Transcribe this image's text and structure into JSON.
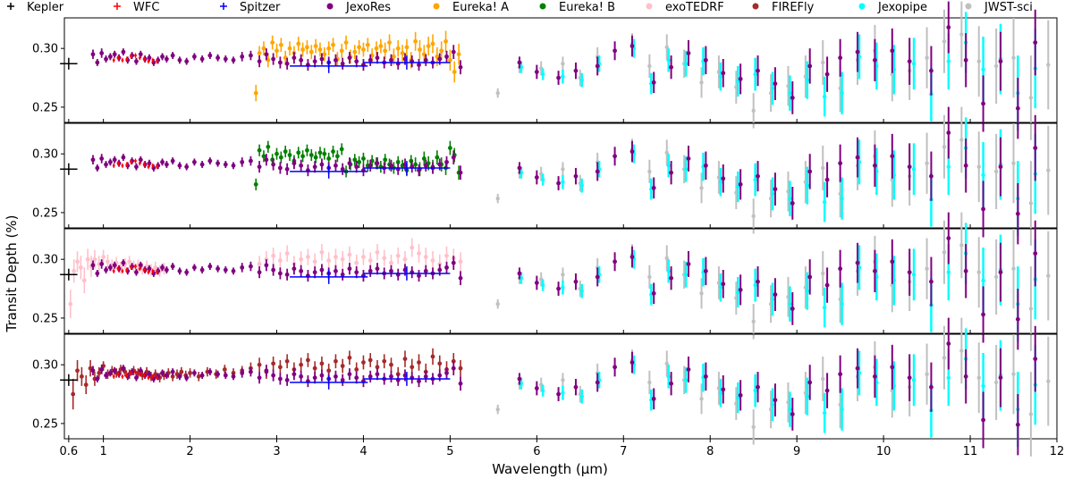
{
  "chart_data": {
    "type": "scatter",
    "xlabel": "Wavelength (μm)",
    "ylabel": "Transit Depth (%)",
    "xlim": [
      0.55,
      12.0
    ],
    "ylim": [
      0.237,
      0.326
    ],
    "x_ticks": [
      {
        "value": 0.6,
        "label": "0.6"
      },
      {
        "value": 1,
        "label": "1"
      },
      {
        "value": 2,
        "label": "2"
      },
      {
        "value": 3,
        "label": "3"
      },
      {
        "value": 4,
        "label": "4"
      },
      {
        "value": 5,
        "label": "5"
      },
      {
        "value": 6,
        "label": "6"
      },
      {
        "value": 7,
        "label": "7"
      },
      {
        "value": 8,
        "label": "8"
      },
      {
        "value": 9,
        "label": "9"
      },
      {
        "value": 10,
        "label": "10"
      },
      {
        "value": 11,
        "label": "11"
      },
      {
        "value": 12,
        "label": "12"
      }
    ],
    "y_ticks": [
      {
        "value": 0.25,
        "label": "0.25"
      },
      {
        "value": 0.3,
        "label": "0.30"
      }
    ],
    "legend_placement": "top, single row above panels",
    "grid": false,
    "panels": 4,
    "legend": [
      {
        "name": "Kepler",
        "color": "#000000",
        "marker": "plus"
      },
      {
        "name": "WFC",
        "color": "#ff0000",
        "marker": "plus"
      },
      {
        "name": "Spitzer",
        "color": "#0000ff",
        "marker": "plus"
      },
      {
        "name": "JexoRes",
        "color": "#800080",
        "marker": "dot"
      },
      {
        "name": "Eureka! A",
        "color": "#ffa500",
        "marker": "dot"
      },
      {
        "name": "Eureka! B",
        "color": "#008000",
        "marker": "dot"
      },
      {
        "name": "exoTEDRF",
        "color": "#ffc0cb",
        "marker": "dot"
      },
      {
        "name": "FIREFly",
        "color": "#a52a2a",
        "marker": "dot"
      },
      {
        "name": "Jexopipe",
        "color": "#00ffff",
        "marker": "dot"
      },
      {
        "name": "JWST-sci",
        "color": "#c0c0c0",
        "marker": "dot"
      }
    ],
    "panel_comparison_series": [
      "Eureka! A",
      "Eureka! B",
      "exoTEDRF",
      "FIREFly"
    ],
    "kepler": {
      "x": 0.6,
      "xerr": 0.1,
      "y": 0.287,
      "yerr": 0.005
    },
    "spitzer": [
      {
        "x": 3.6,
        "xerr": 0.45,
        "y": 0.285,
        "yerr": 0.006
      },
      {
        "x": 4.5,
        "xerr": 0.5,
        "y": 0.288,
        "yerr": 0.006
      }
    ],
    "wfc": {
      "x": [
        1.12,
        1.17,
        1.22,
        1.27,
        1.32,
        1.37,
        1.42,
        1.47,
        1.52,
        1.57,
        1.62
      ],
      "y": [
        0.29,
        0.292,
        0.29,
        0.291,
        0.293,
        0.294,
        0.292,
        0.291,
        0.289,
        0.29,
        0.289
      ],
      "err": [
        0.002,
        0.002,
        0.002,
        0.002,
        0.002,
        0.002,
        0.002,
        0.002,
        0.002,
        0.002,
        0.002
      ]
    },
    "jexores_near": {
      "x": [
        0.88,
        0.93,
        0.98,
        1.03,
        1.08,
        1.13,
        1.18,
        1.23,
        1.28,
        1.33,
        1.38,
        1.43,
        1.48,
        1.53,
        1.58,
        1.63,
        1.68,
        1.73,
        1.8,
        1.88,
        1.96,
        2.05,
        2.14,
        2.23,
        2.32,
        2.41,
        2.5,
        2.6,
        2.7,
        2.8,
        2.88,
        2.96,
        3.04,
        3.12,
        3.2,
        3.28,
        3.36,
        3.44,
        3.52,
        3.6,
        3.68,
        3.76,
        3.84,
        3.92,
        4.0,
        4.08,
        4.16,
        4.24,
        4.32,
        4.4,
        4.48,
        4.56,
        4.64,
        4.72,
        4.8,
        4.88,
        4.96,
        5.04,
        5.12
      ],
      "y": [
        0.295,
        0.288,
        0.296,
        0.291,
        0.293,
        0.295,
        0.292,
        0.297,
        0.29,
        0.294,
        0.289,
        0.295,
        0.291,
        0.292,
        0.288,
        0.29,
        0.293,
        0.291,
        0.294,
        0.29,
        0.289,
        0.293,
        0.291,
        0.294,
        0.292,
        0.291,
        0.29,
        0.293,
        0.294,
        0.289,
        0.295,
        0.291,
        0.288,
        0.287,
        0.292,
        0.29,
        0.286,
        0.289,
        0.291,
        0.288,
        0.29,
        0.287,
        0.292,
        0.289,
        0.286,
        0.29,
        0.292,
        0.288,
        0.29,
        0.287,
        0.291,
        0.289,
        0.286,
        0.29,
        0.288,
        0.291,
        0.293,
        0.297,
        0.284
      ],
      "err": [
        0.004,
        0.003,
        0.004,
        0.003,
        0.003,
        0.003,
        0.003,
        0.003,
        0.003,
        0.003,
        0.003,
        0.003,
        0.003,
        0.003,
        0.003,
        0.003,
        0.003,
        0.003,
        0.003,
        0.003,
        0.003,
        0.003,
        0.003,
        0.003,
        0.003,
        0.003,
        0.003,
        0.004,
        0.004,
        0.005,
        0.005,
        0.005,
        0.005,
        0.005,
        0.005,
        0.005,
        0.005,
        0.005,
        0.005,
        0.005,
        0.005,
        0.005,
        0.005,
        0.005,
        0.005,
        0.005,
        0.005,
        0.005,
        0.005,
        0.005,
        0.005,
        0.005,
        0.005,
        0.005,
        0.005,
        0.005,
        0.005,
        0.006,
        0.006
      ]
    },
    "jexores_far": {
      "x": [
        5.8,
        6.0,
        6.25,
        6.45,
        6.7,
        6.9,
        7.1,
        7.35,
        7.55,
        7.75,
        7.95,
        8.15,
        8.35,
        8.55,
        8.75,
        8.95,
        9.15,
        9.35,
        9.5,
        9.7,
        9.9,
        10.1,
        10.3,
        10.55,
        10.75,
        10.95,
        11.15,
        11.35,
        11.55,
        11.75
      ],
      "y": [
        0.288,
        0.28,
        0.275,
        0.281,
        0.285,
        0.298,
        0.302,
        0.271,
        0.284,
        0.296,
        0.29,
        0.279,
        0.274,
        0.281,
        0.27,
        0.258,
        0.285,
        0.278,
        0.292,
        0.297,
        0.29,
        0.298,
        0.289,
        0.281,
        0.318,
        0.29,
        0.253,
        0.289,
        0.249,
        0.305
      ],
      "err": [
        0.005,
        0.006,
        0.006,
        0.007,
        0.008,
        0.008,
        0.009,
        0.009,
        0.01,
        0.011,
        0.012,
        0.012,
        0.013,
        0.013,
        0.014,
        0.014,
        0.015,
        0.015,
        0.016,
        0.017,
        0.018,
        0.019,
        0.02,
        0.021,
        0.022,
        0.023,
        0.024,
        0.025,
        0.026,
        0.028
      ]
    },
    "jwst_sci": {
      "x": [
        5.55,
        5.8,
        6.05,
        6.3,
        6.5,
        6.7,
        7.1,
        7.3,
        7.5,
        7.7,
        7.9,
        8.1,
        8.3,
        8.5,
        8.7,
        8.9,
        9.1,
        9.3,
        9.5,
        9.7,
        9.9,
        10.1,
        10.3,
        10.5,
        10.7,
        10.9,
        11.1,
        11.3,
        11.5,
        11.7,
        11.9
      ],
      "y": [
        0.262,
        0.284,
        0.283,
        0.287,
        0.275,
        0.293,
        0.304,
        0.285,
        0.301,
        0.287,
        0.271,
        0.28,
        0.267,
        0.247,
        0.262,
        0.268,
        0.276,
        0.288,
        0.266,
        0.29,
        0.298,
        0.278,
        0.281,
        0.292,
        0.306,
        0.312,
        0.289,
        0.285,
        0.292,
        0.258,
        0.286
      ],
      "err": [
        0.004,
        0.005,
        0.006,
        0.006,
        0.007,
        0.008,
        0.009,
        0.01,
        0.011,
        0.012,
        0.013,
        0.014,
        0.014,
        0.015,
        0.016,
        0.017,
        0.018,
        0.019,
        0.02,
        0.021,
        0.022,
        0.023,
        0.025,
        0.026,
        0.027,
        0.028,
        0.03,
        0.032,
        0.034,
        0.036,
        0.038
      ]
    },
    "jexopipe": {
      "x": [
        5.82,
        6.07,
        6.3,
        6.52,
        6.72,
        7.12,
        7.32,
        7.52,
        7.72,
        7.92,
        8.12,
        8.32,
        8.52,
        8.72,
        8.92,
        9.12,
        9.32,
        9.52,
        9.72,
        9.92,
        10.12,
        10.35,
        10.55,
        10.75,
        10.95,
        11.15,
        11.35,
        11.55,
        11.75
      ],
      "y": [
        0.284,
        0.278,
        0.276,
        0.273,
        0.287,
        0.3,
        0.27,
        0.29,
        0.287,
        0.289,
        0.276,
        0.272,
        0.278,
        0.266,
        0.262,
        0.273,
        0.259,
        0.262,
        0.293,
        0.285,
        0.282,
        0.287,
        0.261,
        0.289,
        0.305,
        0.282,
        0.291,
        0.262,
        0.283
      ],
      "err": [
        0.005,
        0.005,
        0.006,
        0.006,
        0.007,
        0.008,
        0.009,
        0.01,
        0.011,
        0.012,
        0.012,
        0.013,
        0.014,
        0.014,
        0.015,
        0.016,
        0.017,
        0.018,
        0.019,
        0.02,
        0.021,
        0.022,
        0.023,
        0.024,
        0.026,
        0.028,
        0.03,
        0.032,
        0.034
      ]
    },
    "eureka_a": {
      "x": [
        2.76,
        2.8,
        2.85,
        2.9,
        2.95,
        3.0,
        3.05,
        3.1,
        3.15,
        3.2,
        3.25,
        3.3,
        3.35,
        3.4,
        3.45,
        3.5,
        3.55,
        3.6,
        3.65,
        3.7,
        3.75,
        3.8,
        3.85,
        3.9,
        3.95,
        4.0,
        4.05,
        4.1,
        4.15,
        4.2,
        4.25,
        4.3,
        4.35,
        4.4,
        4.45,
        4.5,
        4.55,
        4.6,
        4.65,
        4.7,
        4.75,
        4.8,
        4.85,
        4.9,
        4.95,
        5.0,
        5.05,
        5.1
      ],
      "y": [
        0.262,
        0.296,
        0.3,
        0.29,
        0.305,
        0.298,
        0.303,
        0.292,
        0.3,
        0.296,
        0.304,
        0.299,
        0.301,
        0.297,
        0.302,
        0.299,
        0.295,
        0.3,
        0.303,
        0.291,
        0.298,
        0.305,
        0.293,
        0.297,
        0.301,
        0.299,
        0.303,
        0.294,
        0.3,
        0.302,
        0.298,
        0.305,
        0.293,
        0.3,
        0.296,
        0.301,
        0.29,
        0.306,
        0.299,
        0.295,
        0.302,
        0.304,
        0.293,
        0.298,
        0.306,
        0.29,
        0.28,
        0.295
      ],
      "err": [
        0.007,
        0.006,
        0.006,
        0.006,
        0.006,
        0.006,
        0.006,
        0.006,
        0.006,
        0.006,
        0.006,
        0.006,
        0.006,
        0.006,
        0.006,
        0.006,
        0.006,
        0.006,
        0.006,
        0.006,
        0.006,
        0.006,
        0.006,
        0.006,
        0.006,
        0.006,
        0.006,
        0.006,
        0.006,
        0.006,
        0.007,
        0.007,
        0.007,
        0.007,
        0.007,
        0.007,
        0.007,
        0.008,
        0.008,
        0.008,
        0.008,
        0.008,
        0.008,
        0.008,
        0.009,
        0.009,
        0.009,
        0.009
      ]
    },
    "eureka_b": {
      "x": [
        2.76,
        2.8,
        2.85,
        2.9,
        2.95,
        3.0,
        3.05,
        3.1,
        3.15,
        3.2,
        3.25,
        3.3,
        3.35,
        3.4,
        3.45,
        3.5,
        3.55,
        3.6,
        3.65,
        3.7,
        3.75,
        3.8,
        3.85,
        3.9,
        3.95,
        4.0,
        4.05,
        4.1,
        4.15,
        4.2,
        4.25,
        4.3,
        4.35,
        4.4,
        4.45,
        4.5,
        4.55,
        4.6,
        4.65,
        4.7,
        4.75,
        4.8,
        4.85,
        4.9,
        4.95,
        5.0,
        5.05,
        5.1
      ],
      "y": [
        0.274,
        0.303,
        0.298,
        0.306,
        0.295,
        0.3,
        0.297,
        0.302,
        0.299,
        0.294,
        0.301,
        0.298,
        0.303,
        0.299,
        0.297,
        0.301,
        0.3,
        0.296,
        0.302,
        0.298,
        0.304,
        0.285,
        0.291,
        0.295,
        0.293,
        0.296,
        0.29,
        0.294,
        0.292,
        0.289,
        0.295,
        0.291,
        0.288,
        0.293,
        0.29,
        0.286,
        0.294,
        0.291,
        0.287,
        0.296,
        0.292,
        0.289,
        0.297,
        0.291,
        0.288,
        0.305,
        0.299,
        0.284
      ],
      "err": [
        0.005,
        0.005,
        0.005,
        0.005,
        0.005,
        0.005,
        0.005,
        0.005,
        0.005,
        0.005,
        0.005,
        0.005,
        0.005,
        0.005,
        0.005,
        0.005,
        0.005,
        0.005,
        0.005,
        0.005,
        0.005,
        0.005,
        0.005,
        0.005,
        0.005,
        0.005,
        0.005,
        0.005,
        0.005,
        0.005,
        0.005,
        0.005,
        0.005,
        0.005,
        0.005,
        0.005,
        0.005,
        0.006,
        0.006,
        0.006,
        0.006,
        0.006,
        0.006,
        0.006,
        0.006,
        0.006,
        0.006,
        0.006
      ]
    },
    "exotedrf": {
      "x": [
        0.62,
        0.66,
        0.7,
        0.74,
        0.78,
        0.82,
        0.86,
        0.9,
        0.95,
        1.0,
        1.05,
        1.1,
        1.15,
        1.2,
        1.25,
        1.3,
        1.35,
        1.4,
        1.45,
        1.5,
        1.55,
        1.6,
        1.65,
        1.7,
        2.8,
        2.88,
        2.96,
        3.04,
        3.12,
        3.2,
        3.28,
        3.36,
        3.44,
        3.52,
        3.6,
        3.68,
        3.76,
        3.84,
        3.92,
        4.0,
        4.08,
        4.16,
        4.24,
        4.32,
        4.4,
        4.48,
        4.56,
        4.64,
        4.72,
        4.8,
        4.88,
        4.96,
        5.04,
        5.12
      ],
      "y": [
        0.262,
        0.29,
        0.298,
        0.293,
        0.282,
        0.3,
        0.294,
        0.3,
        0.296,
        0.302,
        0.298,
        0.295,
        0.297,
        0.293,
        0.296,
        0.298,
        0.294,
        0.295,
        0.292,
        0.294,
        0.291,
        0.293,
        0.29,
        0.292,
        0.296,
        0.3,
        0.303,
        0.299,
        0.305,
        0.296,
        0.3,
        0.302,
        0.298,
        0.306,
        0.299,
        0.302,
        0.3,
        0.304,
        0.297,
        0.302,
        0.299,
        0.306,
        0.301,
        0.297,
        0.303,
        0.3,
        0.31,
        0.305,
        0.302,
        0.299,
        0.296,
        0.303,
        0.301,
        0.298
      ],
      "err": [
        0.012,
        0.01,
        0.009,
        0.01,
        0.011,
        0.009,
        0.009,
        0.008,
        0.007,
        0.006,
        0.006,
        0.005,
        0.005,
        0.005,
        0.005,
        0.005,
        0.005,
        0.005,
        0.005,
        0.005,
        0.005,
        0.005,
        0.005,
        0.005,
        0.007,
        0.007,
        0.007,
        0.007,
        0.007,
        0.007,
        0.007,
        0.007,
        0.007,
        0.007,
        0.007,
        0.007,
        0.007,
        0.007,
        0.007,
        0.007,
        0.007,
        0.007,
        0.007,
        0.007,
        0.007,
        0.007,
        0.008,
        0.008,
        0.008,
        0.008,
        0.008,
        0.008,
        0.008,
        0.008
      ]
    },
    "firefly": {
      "x": [
        0.65,
        0.7,
        0.75,
        0.8,
        0.85,
        0.9,
        0.95,
        1.0,
        1.05,
        1.1,
        1.15,
        1.2,
        1.25,
        1.3,
        1.35,
        1.4,
        1.45,
        1.5,
        1.55,
        1.6,
        1.65,
        1.7,
        1.75,
        1.8,
        1.85,
        1.9,
        1.95,
        2.0,
        2.1,
        2.2,
        2.3,
        2.4,
        2.5,
        2.6,
        2.7,
        2.8,
        2.88,
        2.96,
        3.04,
        3.12,
        3.2,
        3.28,
        3.36,
        3.44,
        3.52,
        3.6,
        3.68,
        3.76,
        3.84,
        3.92,
        4.0,
        4.08,
        4.16,
        4.24,
        4.32,
        4.4,
        4.48,
        4.56,
        4.64,
        4.72,
        4.8,
        4.88,
        4.96,
        5.04,
        5.12
      ],
      "y": [
        0.275,
        0.295,
        0.29,
        0.283,
        0.297,
        0.288,
        0.293,
        0.299,
        0.292,
        0.295,
        0.293,
        0.296,
        0.294,
        0.292,
        0.295,
        0.293,
        0.291,
        0.294,
        0.29,
        0.292,
        0.289,
        0.291,
        0.293,
        0.29,
        0.292,
        0.294,
        0.291,
        0.293,
        0.29,
        0.294,
        0.292,
        0.296,
        0.293,
        0.295,
        0.297,
        0.3,
        0.294,
        0.301,
        0.298,
        0.303,
        0.296,
        0.3,
        0.304,
        0.297,
        0.301,
        0.295,
        0.303,
        0.299,
        0.306,
        0.296,
        0.302,
        0.304,
        0.298,
        0.303,
        0.3,
        0.292,
        0.305,
        0.298,
        0.302,
        0.294,
        0.307,
        0.301,
        0.296,
        0.303,
        0.297
      ],
      "err": [
        0.013,
        0.009,
        0.008,
        0.008,
        0.007,
        0.006,
        0.005,
        0.004,
        0.004,
        0.004,
        0.004,
        0.004,
        0.004,
        0.004,
        0.004,
        0.004,
        0.004,
        0.004,
        0.004,
        0.004,
        0.004,
        0.004,
        0.004,
        0.004,
        0.004,
        0.004,
        0.004,
        0.004,
        0.004,
        0.004,
        0.004,
        0.004,
        0.004,
        0.004,
        0.005,
        0.006,
        0.006,
        0.006,
        0.006,
        0.006,
        0.006,
        0.006,
        0.006,
        0.006,
        0.006,
        0.006,
        0.006,
        0.006,
        0.006,
        0.006,
        0.006,
        0.006,
        0.006,
        0.006,
        0.006,
        0.006,
        0.007,
        0.007,
        0.007,
        0.007,
        0.007,
        0.007,
        0.007,
        0.007,
        0.007
      ]
    }
  }
}
